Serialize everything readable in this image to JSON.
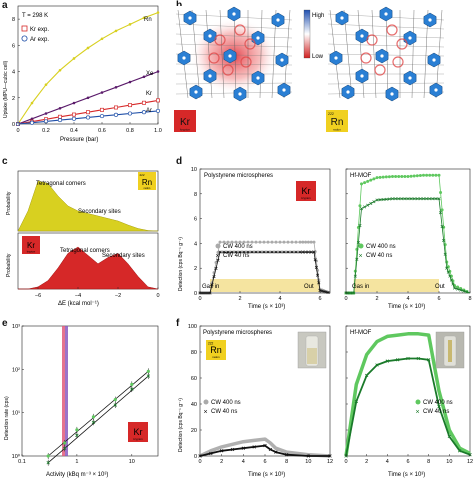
{
  "panels": {
    "a": {
      "letter": "a",
      "temp": "T = 298 K",
      "ylabel": "Uptake (MPU—cubic cell)",
      "xlabel": "Pressure (bar)",
      "yticks": [
        "0",
        "2",
        "4",
        "6",
        "8"
      ],
      "xticks": [
        "0",
        "0.2",
        "0.4",
        "0.6",
        "0.8",
        "1.0"
      ],
      "legend": [
        "Kr exp.",
        "Ar exp."
      ],
      "series_labels": [
        "Rn",
        "Xe",
        "Kr",
        "Ar"
      ]
    },
    "b": {
      "letter": "b",
      "scale_high": "High",
      "scale_low": "Low",
      "left_badge": {
        "symbol": "Kr",
        "sub": "krypton"
      },
      "right_badge": {
        "mass": "222",
        "symbol": "Rn",
        "sub": "radon"
      }
    },
    "c": {
      "letter": "c",
      "ylabel": "Probability",
      "xlabel": "ΔE (kcal mol⁻¹)",
      "xticks": [
        "−6",
        "−4",
        "−2",
        "0"
      ],
      "top_labels": [
        "Tetragonal corners",
        "Secondary sites"
      ],
      "bottom_labels": [
        "Tetragonal corners",
        "Secondary sites"
      ],
      "rn_badge": {
        "mass": "222",
        "symbol": "Rn",
        "sub": "radon"
      },
      "kr_badge": {
        "symbol": "Kr",
        "sub": "krypton"
      }
    },
    "d": {
      "letter": "d",
      "left_title": "Polystyrene microspheres",
      "right_title": "Hf-MOF",
      "ylabel": "Detection (cps Bq⁻¹ g⁻¹)",
      "xlabel": "Time (s × 10³)",
      "yticks": [
        "0",
        "2",
        "4",
        "6",
        "8",
        "10"
      ],
      "left_xticks": [
        "0",
        "2",
        "4",
        "6"
      ],
      "right_xticks": [
        "0",
        "2",
        "4",
        "6",
        "8"
      ],
      "legend": [
        "CW 400 ns",
        "CW 40 ns"
      ],
      "gas_in": "Gas in",
      "out": "Out",
      "badge": {
        "symbol": "Kr",
        "sub": "krypton"
      }
    },
    "e": {
      "letter": "e",
      "ylabel": "Detection rate (cps)",
      "xlabel": "Activity (kBq m⁻³ × 10³)",
      "yticks": [
        "10⁰",
        "10¹",
        "10²",
        "10³"
      ],
      "xticks": [
        "0.1",
        "1",
        "10"
      ],
      "badge": {
        "symbol": "Kr",
        "sub": "krypton"
      }
    },
    "f": {
      "letter": "f",
      "left_title": "Polystyrene microspheres",
      "right_title": "Hf-MOF",
      "ylabel": "Detection (cps Bq⁻¹ g⁻¹)",
      "xlabel": "Time (s × 10³)",
      "yticks": [
        "0",
        "20",
        "40",
        "60",
        "80",
        "100"
      ],
      "xticks": [
        "0",
        "2",
        "4",
        "6",
        "8",
        "10",
        "12"
      ],
      "legend": [
        "CW 400 ns",
        "CW 40 ns"
      ],
      "badge": {
        "mass": "222",
        "symbol": "Rn",
        "sub": "radon"
      }
    }
  },
  "colors": {
    "rn": "#d8d020",
    "xe": "#5a1a6a",
    "kr": "#d62828",
    "ar": "#1f4fa8",
    "light_green": "#5fc85f",
    "dark_green": "#1a7a2a",
    "grey": "#9a9a9a",
    "gas_band": "#f5e4a0",
    "mof_blue": "#2a7fd4"
  },
  "chart_data": [
    {
      "type": "line",
      "panel": "a",
      "xlabel": "Pressure (bar)",
      "ylabel": "Uptake (MPU—cubic cell)",
      "xlim": [
        0,
        1.0
      ],
      "ylim": [
        0,
        9
      ],
      "series": [
        {
          "name": "Rn",
          "x": [
            0,
            0.1,
            0.2,
            0.3,
            0.4,
            0.5,
            0.6,
            0.7,
            0.8,
            0.9,
            1.0
          ],
          "values": [
            0,
            1.6,
            3.0,
            4.1,
            5.0,
            5.8,
            6.5,
            7.1,
            7.6,
            8.1,
            8.5
          ]
        },
        {
          "name": "Xe",
          "x": [
            0,
            0.1,
            0.2,
            0.3,
            0.4,
            0.5,
            0.6,
            0.7,
            0.8,
            0.9,
            1.0
          ],
          "values": [
            0,
            0.4,
            0.8,
            1.2,
            1.6,
            2.0,
            2.4,
            2.8,
            3.2,
            3.6,
            4.0
          ]
        },
        {
          "name": "Kr",
          "x": [
            0,
            0.1,
            0.2,
            0.3,
            0.4,
            0.5,
            0.6,
            0.7,
            0.8,
            0.9,
            1.0
          ],
          "values": [
            0,
            0.18,
            0.36,
            0.55,
            0.72,
            0.9,
            1.08,
            1.26,
            1.44,
            1.62,
            1.8
          ]
        },
        {
          "name": "Ar",
          "x": [
            0,
            0.1,
            0.2,
            0.3,
            0.4,
            0.5,
            0.6,
            0.7,
            0.8,
            0.9,
            1.0
          ],
          "values": [
            0,
            0.1,
            0.2,
            0.3,
            0.4,
            0.5,
            0.6,
            0.7,
            0.8,
            0.9,
            1.0
          ]
        }
      ]
    },
    {
      "type": "area",
      "panel": "c",
      "xlabel": "ΔE (kcal mol⁻¹)",
      "xlim": [
        -7,
        0
      ],
      "series": [
        {
          "name": "Rn",
          "x": [
            -7,
            -6.5,
            -6,
            -5.5,
            -5,
            -4.5,
            -4,
            -3.5,
            -3,
            -2.5,
            -2,
            -1.5,
            -1,
            -0.5,
            0
          ],
          "values": [
            0,
            0.4,
            1.0,
            0.95,
            0.7,
            0.5,
            0.4,
            0.35,
            0.3,
            0.25,
            0.2,
            0.12,
            0.05,
            0.01,
            0
          ]
        },
        {
          "name": "Kr",
          "x": [
            -7,
            -6.5,
            -6,
            -5.5,
            -5,
            -4.5,
            -4,
            -3.5,
            -3,
            -2.5,
            -2,
            -1.5,
            -1,
            -0.5,
            0
          ],
          "values": [
            0,
            0,
            0.05,
            0.2,
            0.5,
            0.85,
            1.0,
            0.8,
            0.6,
            0.75,
            0.85,
            0.6,
            0.3,
            0.05,
            0
          ]
        }
      ]
    },
    {
      "type": "line",
      "panel": "d-left",
      "xlim": [
        0,
        6.5
      ],
      "ylim": [
        0,
        10
      ],
      "series": [
        {
          "name": "CW 400 ns",
          "x": [
            0,
            0.5,
            1,
            2,
            3,
            4,
            5,
            5.7,
            6,
            6.5
          ],
          "values": [
            0,
            0,
            4.1,
            4.1,
            4.1,
            4.1,
            4.1,
            4.1,
            0.3,
            0
          ]
        },
        {
          "name": "CW 40 ns",
          "x": [
            0,
            0.5,
            1,
            2,
            3,
            4,
            5,
            5.7,
            6,
            6.5
          ],
          "values": [
            0,
            0,
            3.3,
            3.3,
            3.3,
            3.3,
            3.3,
            3.3,
            0.2,
            0
          ]
        }
      ]
    },
    {
      "type": "line",
      "panel": "d-right",
      "xlim": [
        0,
        8
      ],
      "ylim": [
        0,
        10
      ],
      "series": [
        {
          "name": "CW 400 ns",
          "x": [
            0,
            0.5,
            1,
            2,
            3,
            4,
            5,
            6,
            6.5,
            7,
            8
          ],
          "values": [
            0,
            0,
            8.8,
            9.3,
            9.4,
            9.4,
            9.5,
            9.5,
            2.5,
            0.6,
            0
          ]
        },
        {
          "name": "CW 40 ns",
          "x": [
            0,
            0.5,
            1,
            2,
            3,
            4,
            5,
            6,
            6.5,
            7,
            8
          ],
          "values": [
            0,
            0,
            6.8,
            7.5,
            7.6,
            7.6,
            7.6,
            7.6,
            2.0,
            0.4,
            0
          ]
        }
      ]
    },
    {
      "type": "scatter",
      "panel": "e",
      "xlabel": "Activity (kBq m⁻³ × 10³)",
      "ylabel": "Detection rate (cps)",
      "series": [
        {
          "name": "CW 400 ns",
          "x": [
            0.3,
            0.6,
            1,
            2,
            5,
            10,
            20
          ],
          "values": [
            1,
            2,
            4,
            8,
            20,
            45,
            90
          ]
        },
        {
          "name": "CW 40 ns",
          "x": [
            0.3,
            0.6,
            1,
            2,
            5,
            10,
            20
          ],
          "values": [
            0.7,
            1.5,
            3,
            6,
            15,
            35,
            70
          ]
        }
      ]
    },
    {
      "type": "line",
      "panel": "f-left",
      "xlim": [
        0,
        12
      ],
      "ylim": [
        0,
        100
      ],
      "series": [
        {
          "name": "CW 400 ns",
          "x": [
            0,
            1,
            2,
            3,
            4,
            5,
            6,
            6.5,
            7,
            8,
            10,
            12
          ],
          "values": [
            0,
            4,
            7,
            9,
            11,
            12,
            13,
            10,
            6,
            3,
            1,
            0
          ]
        },
        {
          "name": "CW 40 ns",
          "x": [
            0,
            1,
            2,
            3,
            4,
            5,
            6,
            6.5,
            7,
            8,
            10,
            12
          ],
          "values": [
            0,
            2,
            4,
            5,
            6,
            7,
            8,
            5,
            3,
            1,
            0,
            0
          ]
        }
      ]
    },
    {
      "type": "line",
      "panel": "f-right",
      "xlim": [
        0,
        12
      ],
      "ylim": [
        0,
        100
      ],
      "series": [
        {
          "name": "CW 400 ns",
          "x": [
            0,
            1,
            2,
            3,
            4,
            5,
            6,
            7,
            8,
            9,
            10,
            11,
            12
          ],
          "values": [
            0,
            55,
            78,
            88,
            92,
            93,
            94,
            94,
            93,
            50,
            20,
            6,
            2
          ]
        },
        {
          "name": "CW 40 ns",
          "x": [
            0,
            1,
            2,
            3,
            4,
            5,
            6,
            7,
            8,
            9,
            10,
            11,
            12
          ],
          "values": [
            0,
            42,
            62,
            70,
            73,
            74,
            75,
            75,
            74,
            38,
            15,
            4,
            1
          ]
        }
      ]
    }
  ]
}
